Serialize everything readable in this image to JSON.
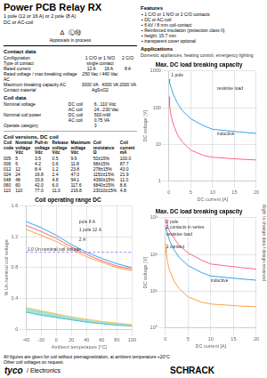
{
  "title": "Power PCB Relay RX",
  "subtitle": [
    "1 pole (12 or 16 A) or 2 pole (8 A)",
    "DC or AC-coil"
  ],
  "features_title": "Features",
  "features": [
    "▪ 1 C/O or 1 N/O or 2 C/O contacts",
    "▪ DC or AC-coil",
    "▪ 6 kV / 8 mm coil-contact",
    "▪ Reinforced insulation (protection class II)",
    "▪ height: 15.7 mm",
    "▪ transparent cover optional"
  ],
  "applications_title": "Applications",
  "applications": "Domestic appliances, heating control, emergency lighting",
  "approvals": [
    "Δ  ⓁⓂ",
    "Approvals in process"
  ],
  "contact_data_title": "Contact data",
  "contact_data": [
    [
      "Configuration",
      "1 C/O or 1 N/O",
      "2 C/O"
    ],
    [
      "Type of contact",
      "single contact"
    ],
    [
      "Rated current",
      "12 A       16 A",
      "8 A"
    ],
    [
      "Rated voltage / max breaking voltage AC",
      "250 Vac / 440 Vac"
    ],
    [
      "Maximum breaking capacity AC",
      "3000 VA   4000 VA",
      "2000 VA"
    ],
    [
      "Contact material",
      "AgSnO2"
    ]
  ],
  "coil_data_title": "Coil data",
  "coil_data": [
    [
      "Nominal voltage",
      "DC coil",
      "6...110 Vdc"
    ],
    [
      null,
      "AC coil",
      "24...230 Vac"
    ],
    [
      "Nominal coil power",
      "DC coil",
      "500 mW"
    ],
    [
      null,
      "AC coil",
      "0.75 VA"
    ],
    [
      "Operate category",
      null,
      "3"
    ]
  ],
  "coil_versions_title": "Coil versions, DC coil",
  "coil_table_header": [
    [
      "Coil",
      "code"
    ],
    [
      "Nominal",
      "voltage",
      "Vdc"
    ],
    [
      "Pull-in",
      "voltage",
      "Vdc"
    ],
    [
      "Release",
      "voltage",
      "Vdc"
    ],
    [
      "Maximum",
      "voltage",
      "Vdc"
    ],
    [
      "Coil",
      "resistance",
      "Ω"
    ],
    [
      "Coil",
      "current",
      "mA"
    ]
  ],
  "coil_table_rows": [
    [
      "005",
      "5",
      "3.5",
      "0.5",
      "9.9",
      "50±15%",
      "100.0"
    ],
    [
      "006",
      "6",
      "4.2",
      "0.6",
      "11.8",
      "68±15%",
      "87.7"
    ],
    [
      "012",
      "12",
      "8.4",
      "1.2",
      "23.8",
      "278±15%",
      "43.0"
    ],
    [
      "024",
      "24",
      "16.8",
      "2.4",
      "47.0",
      "1150±15%",
      "21.9"
    ],
    [
      "048",
      "48",
      "33.6",
      "4.8",
      "94.1",
      "4390±15%",
      "11.0"
    ],
    [
      "060",
      "60",
      "42.0",
      "6.0",
      "117.6",
      "6840±15%",
      "8.8"
    ],
    [
      "110",
      "110",
      "77.0",
      "11.0",
      "216.8",
      "23010±15%",
      "4.8"
    ]
  ],
  "footer_notes": [
    "All figures are given for coil without premagnetization, at ambient temperature +20°C",
    "Other coil voltages on request."
  ],
  "logos": [
    "tyco",
    "/ Electronics",
    "SCHRACK"
  ],
  "side_note": "Right to change data / design reserved",
  "chart_data": [
    {
      "type": "line",
      "title": "Max. DC load breaking capacity",
      "x_label": "DC current [A]",
      "y_label": "DC voltage [V]",
      "log": "y",
      "grid": true,
      "xlim": [
        0,
        20
      ],
      "xticks": [
        0,
        5,
        10,
        15,
        20
      ],
      "ylim": [
        1,
        1000
      ],
      "yticks": [
        1,
        10,
        100,
        1000
      ],
      "x": [
        0.05,
        0.1,
        0.2,
        0.5,
        1,
        2,
        3,
        5,
        8,
        10,
        16,
        20
      ],
      "series": [
        {
          "values": [
            600,
            550,
            480,
            350,
            230,
            130,
            85,
            50,
            32,
            26,
            22,
            20
          ]
        },
        {
          "values": [
            200,
            160,
            110,
            60,
            35,
            18,
            12,
            7,
            5,
            4.5,
            4,
            3.8
          ]
        }
      ],
      "annotations": [
        {
          "text": "resistive load",
          "x": 11,
          "y": 300
        },
        {
          "text": "inductive",
          "x": 11,
          "y": 18
        },
        {
          "text": "1 pole",
          "x": 0.5,
          "y": 700
        }
      ]
    },
    {
      "type": "line",
      "title": "Max. DC load breaking capacity",
      "x_label": "DC current [A]",
      "y_label": "DC voltage [V]",
      "log": "y",
      "grid": true,
      "xlim": [
        0,
        20
      ],
      "xticks": [
        0,
        5,
        10,
        15,
        20
      ],
      "ylim": [
        1,
        1000
      ],
      "yticks": [
        {
          "value": 1,
          "label": "10⁰"
        },
        {
          "value": 10,
          "label": "10¹"
        },
        {
          "value": 100,
          "label": "10²"
        },
        {
          "value": 1000,
          "label": "10³"
        }
      ],
      "x": [
        0.05,
        0.1,
        0.2,
        0.5,
        1,
        2,
        3,
        5,
        8,
        10,
        16,
        20
      ],
      "series": [
        {
          "values": [
            600,
            550,
            480,
            350,
            230,
            130,
            85,
            50,
            32,
            26,
            22,
            20
          ]
        },
        {
          "values": [
            900,
            850,
            750,
            580,
            420,
            270,
            180,
            110,
            70,
            55,
            45,
            40
          ]
        },
        {
          "values": [
            200,
            160,
            110,
            60,
            35,
            18,
            12,
            7,
            5,
            4.5,
            4,
            3.8
          ]
        }
      ],
      "annotations": [
        {
          "text": "1 contact",
          "x": 0.2,
          "y": 150
        },
        {
          "text": "2 contacts in series",
          "x": 0.2,
          "y": 500
        },
        {
          "text": "resistive load",
          "x": 0.2,
          "y": 330
        },
        {
          "text": "inductive",
          "x": 10,
          "y": 18
        },
        {
          "text": "2 pole",
          "x": 0.2,
          "y": 700
        }
      ]
    },
    {
      "type": "line",
      "title": "Coil operating range DC",
      "x_label": "Ambient temperature [°C]",
      "y_label": "% Un nominal coil voltage",
      "grid": true,
      "xlim": [
        -40,
        100
      ],
      "xticks": [
        -40,
        -20,
        0,
        20,
        40,
        60,
        80,
        100
      ],
      "ylim": [
        0,
        1.6
      ],
      "yticks": [
        0,
        0.4,
        0.8,
        1.2,
        1.6
      ],
      "x": [
        -40,
        -20,
        0,
        20,
        40,
        60,
        80,
        100
      ],
      "series": [
        {
          "values": [
            1.4,
            1.32,
            1.22,
            1.1,
            1.0,
            0.92,
            0.85,
            0.8
          ]
        },
        {
          "values": [
            1.35,
            1.27,
            1.18,
            1.07,
            0.97,
            0.89,
            0.82,
            0.78
          ]
        },
        {
          "values": [
            1.3,
            1.22,
            1.14,
            1.04,
            0.94,
            0.87,
            0.8,
            0.76
          ]
        },
        {
          "values": [
            0.28,
            0.24,
            0.2,
            0.16,
            0.13,
            0.1,
            0.08,
            0.06
          ]
        },
        {
          "values": [
            0.22,
            0.18,
            0.15,
            0.12,
            0.09,
            0.07,
            0.05,
            0.04
          ],
          "fill": "previous"
        }
      ],
      "reference_lines": [
        {
          "y": 1.0,
          "line_style": "dashed"
        }
      ],
      "annotations": [
        {
          "text": "pole 8 A",
          "x": 30,
          "y": 1.38
        },
        {
          "text": "1 pole 12 A",
          "x": 30,
          "y": 1.27
        },
        {
          "text": "2 A",
          "x": 30,
          "y": 1.15
        },
        {
          "text": "1.0 Un nominal coil voltage",
          "x": -38,
          "y": 1.02
        }
      ]
    }
  ]
}
